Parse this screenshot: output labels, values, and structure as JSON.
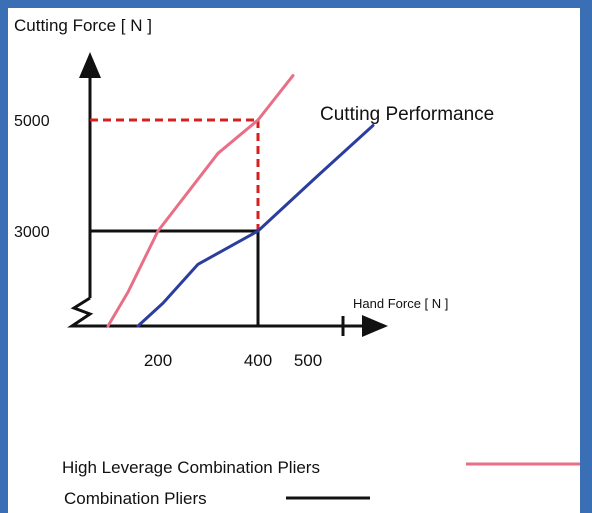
{
  "chart_data": {
    "type": "line",
    "title": "Cutting Performance",
    "ylabel": "Cutting Force [ N ]",
    "xlabel": "Hand Force [ N ]",
    "y_ticks": [
      {
        "value": 5000,
        "label": "5000"
      },
      {
        "value": 3000,
        "label": "3000"
      }
    ],
    "x_ticks": [
      {
        "value": 200,
        "label": "200"
      },
      {
        "value": 400,
        "label": "400"
      },
      {
        "value": 500,
        "label": "500"
      }
    ],
    "series": [
      {
        "name": "High Leverage Combination Pliers",
        "color": "#e86f86",
        "points": [
          [
            100,
            1000
          ],
          [
            140,
            1900
          ],
          [
            200,
            3000
          ],
          [
            320,
            4400
          ],
          [
            400,
            5000
          ],
          [
            470,
            5800
          ]
        ]
      },
      {
        "name": "Combination Pliers",
        "color": "#2b3e9e",
        "points": [
          [
            160,
            1000
          ],
          [
            210,
            1700
          ],
          [
            280,
            2400
          ],
          [
            400,
            3000
          ],
          [
            520,
            4000
          ],
          [
            630,
            4900
          ]
        ]
      }
    ],
    "reference_lines": [
      {
        "x": 400,
        "y": 5000,
        "style": "dashed",
        "color": "#d62020"
      },
      {
        "x": 400,
        "y": 3000,
        "style": "solid",
        "color": "#111111"
      }
    ],
    "legend": [
      {
        "label": "High Leverage Combination Pliers",
        "color": "#e86f86"
      },
      {
        "label": "Combination Pliers",
        "color": "#111111"
      }
    ]
  }
}
